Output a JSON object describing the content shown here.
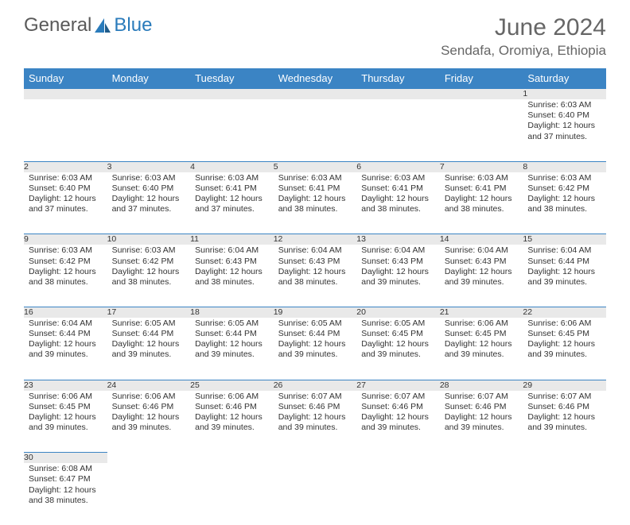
{
  "brand": {
    "part1": "General",
    "part2": "Blue"
  },
  "title": "June 2024",
  "location": "Sendafa, Oromiya, Ethiopia",
  "colors": {
    "header_bg": "#3b84c4",
    "header_text": "#ffffff",
    "daynum_bg": "#e9e9e9",
    "border": "#3b84c4",
    "page_bg": "#ffffff",
    "text": "#333333",
    "title_text": "#666666",
    "logo_gray": "#5a5a5a",
    "logo_blue": "#2a7bbb"
  },
  "day_headers": [
    "Sunday",
    "Monday",
    "Tuesday",
    "Wednesday",
    "Thursday",
    "Friday",
    "Saturday"
  ],
  "weeks": [
    [
      null,
      null,
      null,
      null,
      null,
      null,
      {
        "n": "1",
        "sr": "Sunrise: 6:03 AM",
        "ss": "Sunset: 6:40 PM",
        "dl": "Daylight: 12 hours and 37 minutes."
      }
    ],
    [
      {
        "n": "2",
        "sr": "Sunrise: 6:03 AM",
        "ss": "Sunset: 6:40 PM",
        "dl": "Daylight: 12 hours and 37 minutes."
      },
      {
        "n": "3",
        "sr": "Sunrise: 6:03 AM",
        "ss": "Sunset: 6:40 PM",
        "dl": "Daylight: 12 hours and 37 minutes."
      },
      {
        "n": "4",
        "sr": "Sunrise: 6:03 AM",
        "ss": "Sunset: 6:41 PM",
        "dl": "Daylight: 12 hours and 37 minutes."
      },
      {
        "n": "5",
        "sr": "Sunrise: 6:03 AM",
        "ss": "Sunset: 6:41 PM",
        "dl": "Daylight: 12 hours and 38 minutes."
      },
      {
        "n": "6",
        "sr": "Sunrise: 6:03 AM",
        "ss": "Sunset: 6:41 PM",
        "dl": "Daylight: 12 hours and 38 minutes."
      },
      {
        "n": "7",
        "sr": "Sunrise: 6:03 AM",
        "ss": "Sunset: 6:41 PM",
        "dl": "Daylight: 12 hours and 38 minutes."
      },
      {
        "n": "8",
        "sr": "Sunrise: 6:03 AM",
        "ss": "Sunset: 6:42 PM",
        "dl": "Daylight: 12 hours and 38 minutes."
      }
    ],
    [
      {
        "n": "9",
        "sr": "Sunrise: 6:03 AM",
        "ss": "Sunset: 6:42 PM",
        "dl": "Daylight: 12 hours and 38 minutes."
      },
      {
        "n": "10",
        "sr": "Sunrise: 6:03 AM",
        "ss": "Sunset: 6:42 PM",
        "dl": "Daylight: 12 hours and 38 minutes."
      },
      {
        "n": "11",
        "sr": "Sunrise: 6:04 AM",
        "ss": "Sunset: 6:43 PM",
        "dl": "Daylight: 12 hours and 38 minutes."
      },
      {
        "n": "12",
        "sr": "Sunrise: 6:04 AM",
        "ss": "Sunset: 6:43 PM",
        "dl": "Daylight: 12 hours and 38 minutes."
      },
      {
        "n": "13",
        "sr": "Sunrise: 6:04 AM",
        "ss": "Sunset: 6:43 PM",
        "dl": "Daylight: 12 hours and 39 minutes."
      },
      {
        "n": "14",
        "sr": "Sunrise: 6:04 AM",
        "ss": "Sunset: 6:43 PM",
        "dl": "Daylight: 12 hours and 39 minutes."
      },
      {
        "n": "15",
        "sr": "Sunrise: 6:04 AM",
        "ss": "Sunset: 6:44 PM",
        "dl": "Daylight: 12 hours and 39 minutes."
      }
    ],
    [
      {
        "n": "16",
        "sr": "Sunrise: 6:04 AM",
        "ss": "Sunset: 6:44 PM",
        "dl": "Daylight: 12 hours and 39 minutes."
      },
      {
        "n": "17",
        "sr": "Sunrise: 6:05 AM",
        "ss": "Sunset: 6:44 PM",
        "dl": "Daylight: 12 hours and 39 minutes."
      },
      {
        "n": "18",
        "sr": "Sunrise: 6:05 AM",
        "ss": "Sunset: 6:44 PM",
        "dl": "Daylight: 12 hours and 39 minutes."
      },
      {
        "n": "19",
        "sr": "Sunrise: 6:05 AM",
        "ss": "Sunset: 6:44 PM",
        "dl": "Daylight: 12 hours and 39 minutes."
      },
      {
        "n": "20",
        "sr": "Sunrise: 6:05 AM",
        "ss": "Sunset: 6:45 PM",
        "dl": "Daylight: 12 hours and 39 minutes."
      },
      {
        "n": "21",
        "sr": "Sunrise: 6:06 AM",
        "ss": "Sunset: 6:45 PM",
        "dl": "Daylight: 12 hours and 39 minutes."
      },
      {
        "n": "22",
        "sr": "Sunrise: 6:06 AM",
        "ss": "Sunset: 6:45 PM",
        "dl": "Daylight: 12 hours and 39 minutes."
      }
    ],
    [
      {
        "n": "23",
        "sr": "Sunrise: 6:06 AM",
        "ss": "Sunset: 6:45 PM",
        "dl": "Daylight: 12 hours and 39 minutes."
      },
      {
        "n": "24",
        "sr": "Sunrise: 6:06 AM",
        "ss": "Sunset: 6:46 PM",
        "dl": "Daylight: 12 hours and 39 minutes."
      },
      {
        "n": "25",
        "sr": "Sunrise: 6:06 AM",
        "ss": "Sunset: 6:46 PM",
        "dl": "Daylight: 12 hours and 39 minutes."
      },
      {
        "n": "26",
        "sr": "Sunrise: 6:07 AM",
        "ss": "Sunset: 6:46 PM",
        "dl": "Daylight: 12 hours and 39 minutes."
      },
      {
        "n": "27",
        "sr": "Sunrise: 6:07 AM",
        "ss": "Sunset: 6:46 PM",
        "dl": "Daylight: 12 hours and 39 minutes."
      },
      {
        "n": "28",
        "sr": "Sunrise: 6:07 AM",
        "ss": "Sunset: 6:46 PM",
        "dl": "Daylight: 12 hours and 39 minutes."
      },
      {
        "n": "29",
        "sr": "Sunrise: 6:07 AM",
        "ss": "Sunset: 6:46 PM",
        "dl": "Daylight: 12 hours and 39 minutes."
      }
    ],
    [
      {
        "n": "30",
        "sr": "Sunrise: 6:08 AM",
        "ss": "Sunset: 6:47 PM",
        "dl": "Daylight: 12 hours and 38 minutes."
      },
      null,
      null,
      null,
      null,
      null,
      null
    ]
  ]
}
